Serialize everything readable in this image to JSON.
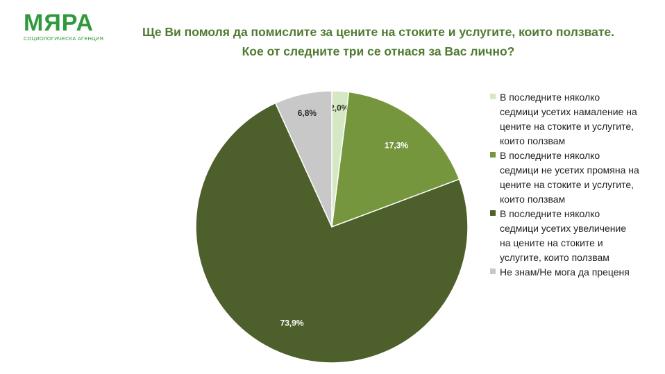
{
  "logo": {
    "word": "МЯРА",
    "subtitle": "СОЦИОЛОГИЧЕСКА АГЕНЦИЯ"
  },
  "title": {
    "line1": "Ще Ви помоля да помислите за цените на стоките и услугите, които ползвате.",
    "line2": "Кое от следните три се отнася за Вас лично?"
  },
  "colors": {
    "brand": "#2f9a3d",
    "title": "#4e7a31"
  },
  "chart_data": {
    "type": "pie",
    "title": "",
    "legend_position": "right",
    "slices": [
      {
        "label": "В последните няколко седмици усетих намаление на цените на стоките и услугите, които ползвам",
        "value": 2.0,
        "display": "2,0%",
        "color": "#d5e8c4",
        "text_color": "#2a2a2a"
      },
      {
        "label": "В последните няколко седмици не усетих промяна на цените на стоките и услугите, които ползвам",
        "value": 17.3,
        "display": "17,3%",
        "color": "#76963e",
        "text_color": "#ffffff"
      },
      {
        "label": "В последните няколко седмици усетих увеличение на цените на стоките и услугите, които ползвам",
        "value": 73.9,
        "display": "73,9%",
        "color": "#4d5f2a",
        "text_color": "#ffffff"
      },
      {
        "label": "Не знам/Не мога да преценя",
        "value": 6.8,
        "display": "6,8%",
        "color": "#c8c8c8",
        "text_color": "#2a2a2a"
      }
    ]
  }
}
